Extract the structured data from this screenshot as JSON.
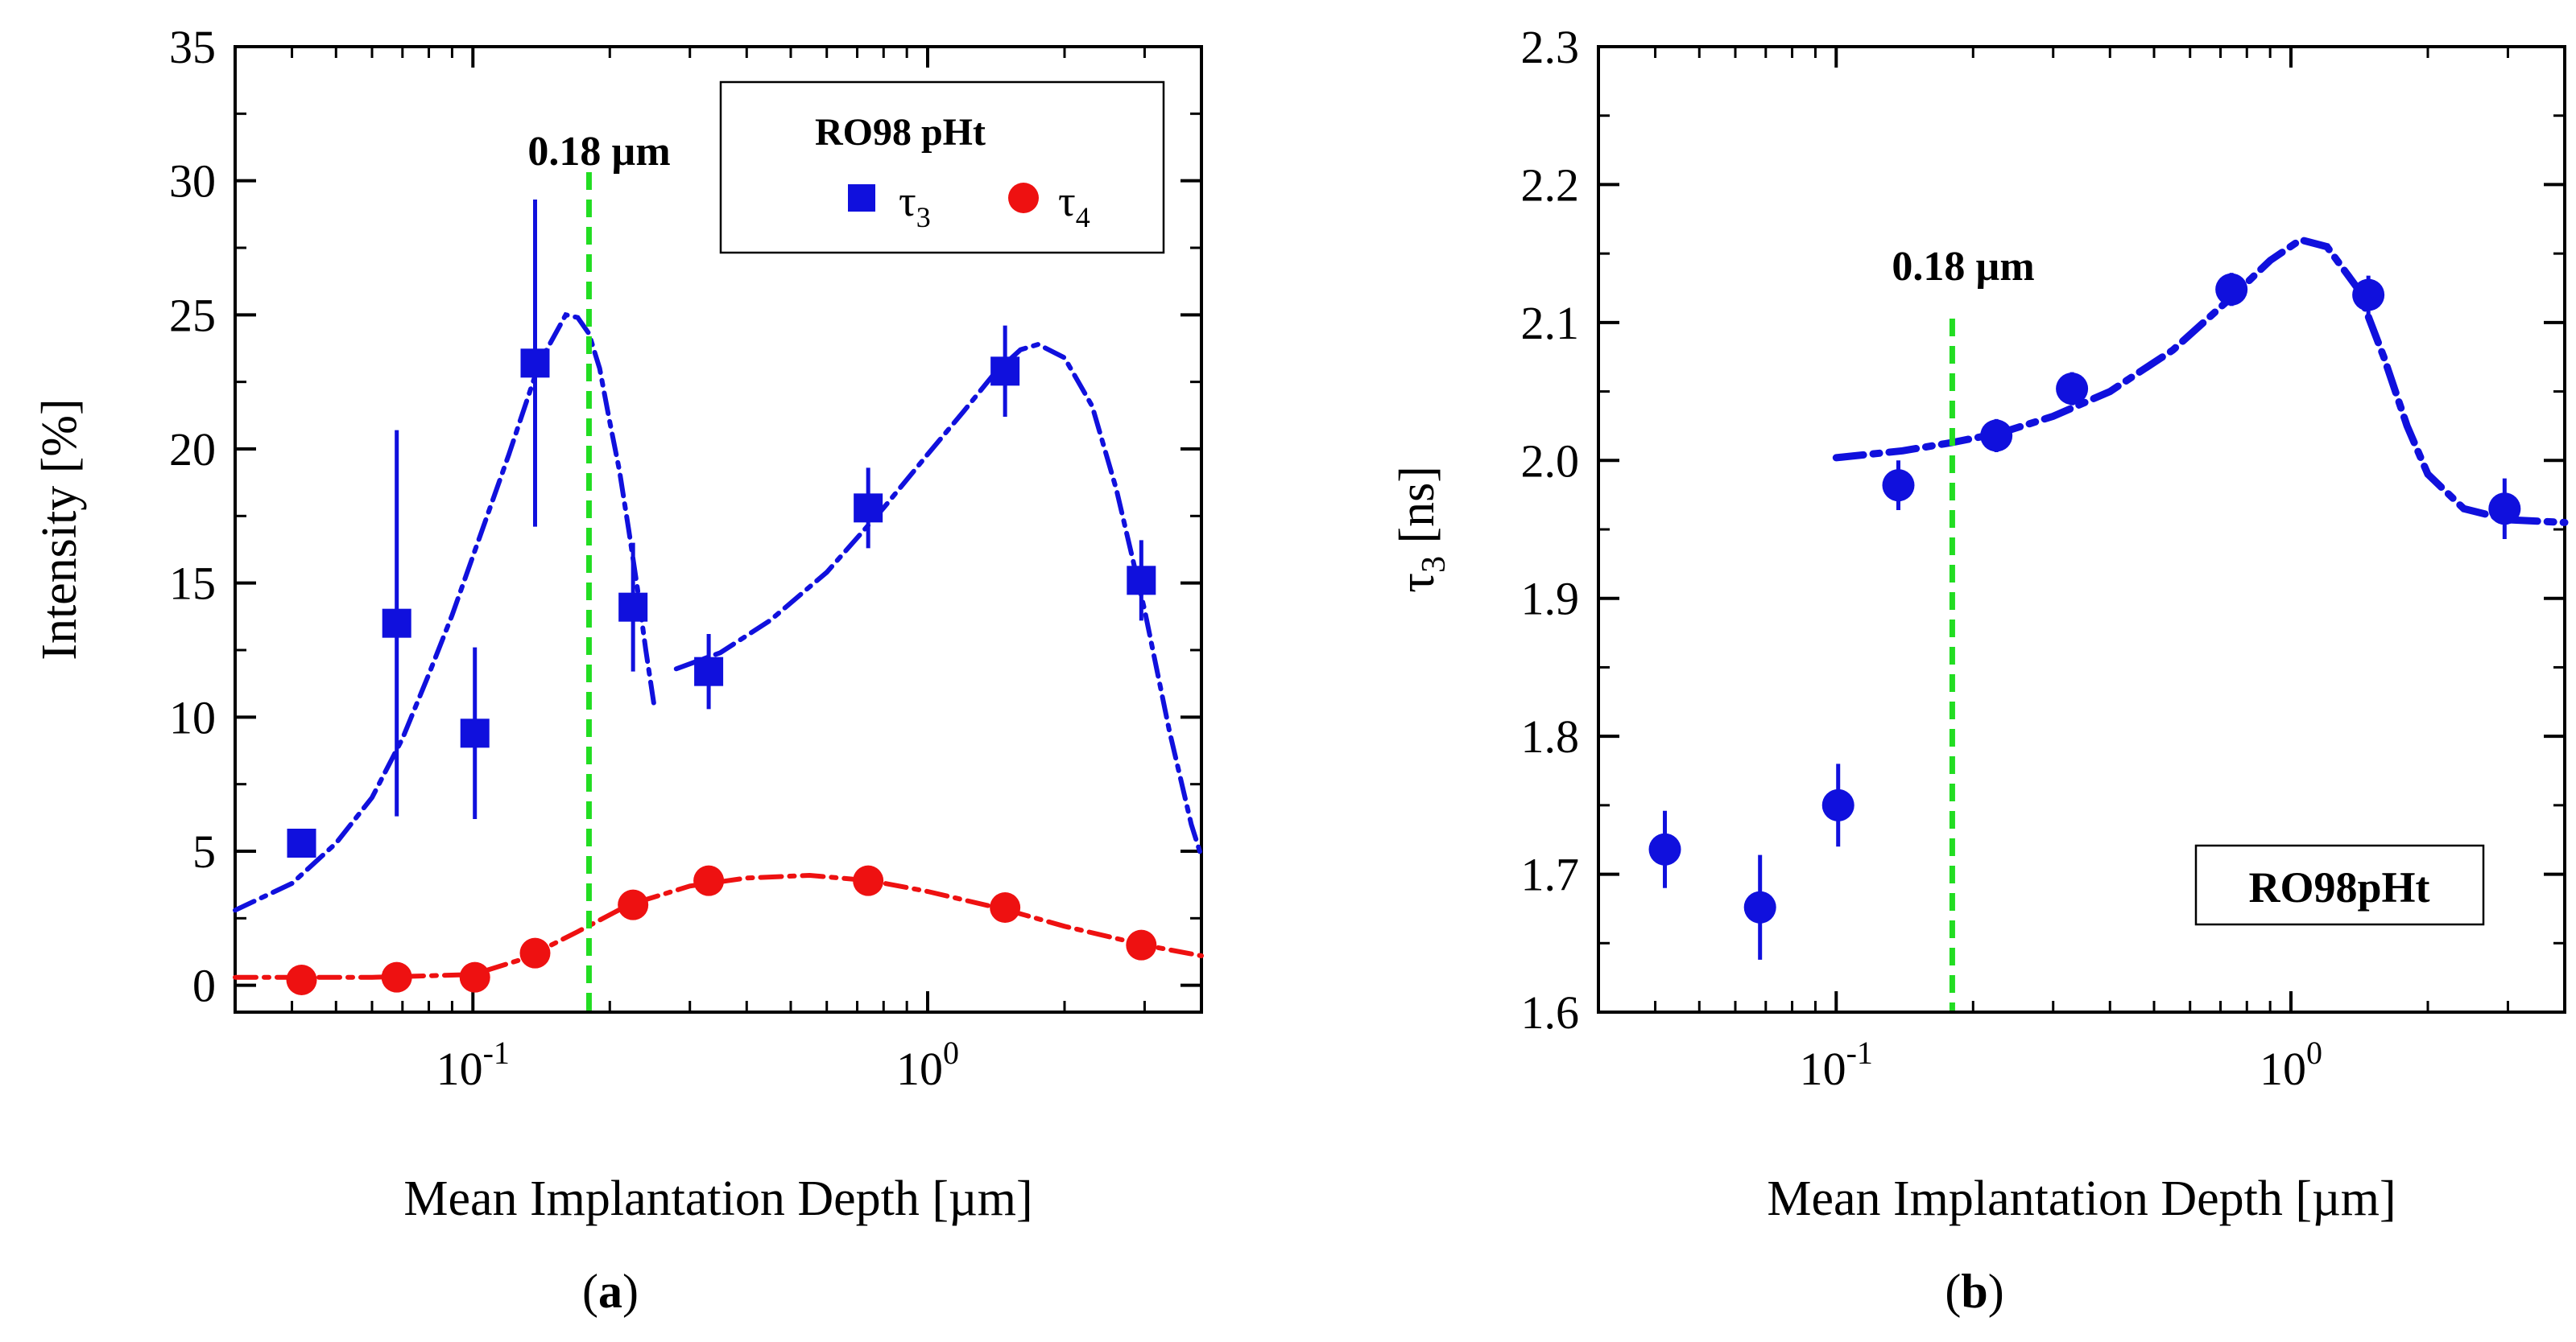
{
  "chart_data": [
    {
      "id": "a",
      "type": "scatter",
      "panel_label": "(a)",
      "panel_letter": "a",
      "xlabel": "Mean Implantation Depth [µm]",
      "ylabel": "Intensity [%]",
      "xscale": "log",
      "xlim": [
        0.03,
        4.0
      ],
      "ylim": [
        -1,
        35
      ],
      "yticks": [
        0,
        5,
        10,
        15,
        20,
        25,
        30,
        35
      ],
      "xticks_major": [
        {
          "value": 0.1,
          "base": "10",
          "exp": "-1"
        },
        {
          "value": 1.0,
          "base": "10",
          "exp": "0"
        }
      ],
      "marker_line": {
        "x": 0.18,
        "label": "0.18 µm",
        "color": "#22dd22"
      },
      "legend": {
        "title": "RO98 pHt",
        "position": "top-right"
      },
      "series": [
        {
          "name": "τ3",
          "name_main": "τ",
          "name_sub": "3",
          "marker": "square",
          "color": "#1010dd",
          "x": [
            0.042,
            0.068,
            0.101,
            0.137,
            0.225,
            0.33,
            0.74,
            1.48,
            2.95
          ],
          "y": [
            5.3,
            13.5,
            9.4,
            23.2,
            14.1,
            11.7,
            17.8,
            22.9,
            15.1
          ],
          "yerr": [
            0.3,
            7.2,
            3.2,
            6.1,
            2.4,
            1.4,
            1.5,
            1.7,
            1.5
          ],
          "fit": [
            {
              "x": [
                0.03,
                0.04,
                0.05,
                0.06,
                0.07,
                0.08,
                0.09,
                0.1,
                0.12,
                0.14,
                0.16,
                0.17,
                0.18,
                0.19,
                0.2,
                0.21,
                0.22,
                0.23,
                0.24,
                0.25
              ],
              "y": [
                2.8,
                3.8,
                5.3,
                7.0,
                9.2,
                11.6,
                13.8,
                16.0,
                19.8,
                23.2,
                25.0,
                24.9,
                24.3,
                23.0,
                21.0,
                19.2,
                17.0,
                14.8,
                12.5,
                10.5
              ]
            },
            {
              "x": [
                0.28,
                0.35,
                0.45,
                0.6,
                0.8,
                1.0,
                1.2,
                1.4,
                1.6,
                1.75,
                2.0,
                2.3,
                2.6,
                3.0,
                3.4,
                3.8,
                4.0
              ],
              "y": [
                11.8,
                12.4,
                13.6,
                15.4,
                17.8,
                19.8,
                21.4,
                22.8,
                23.7,
                23.9,
                23.4,
                21.6,
                18.5,
                14.0,
                9.5,
                6.0,
                4.8
              ]
            }
          ]
        },
        {
          "name": "τ4",
          "name_main": "τ",
          "name_sub": "4",
          "marker": "circle",
          "color": "#ee1111",
          "x": [
            0.042,
            0.068,
            0.101,
            0.137,
            0.225,
            0.33,
            0.74,
            1.48,
            2.95
          ],
          "y": [
            0.2,
            0.3,
            0.3,
            1.2,
            3.0,
            3.9,
            3.9,
            2.9,
            1.5
          ],
          "fit": [
            {
              "x": [
                0.03,
                0.06,
                0.1,
                0.13,
                0.17,
                0.22,
                0.3,
                0.4,
                0.55,
                0.75,
                1.0,
                1.5,
                2.0,
                3.0,
                4.0
              ],
              "y": [
                0.3,
                0.3,
                0.4,
                1.0,
                2.0,
                3.0,
                3.7,
                4.0,
                4.1,
                3.9,
                3.5,
                2.8,
                2.2,
                1.5,
                1.1
              ]
            }
          ]
        }
      ]
    },
    {
      "id": "b",
      "type": "scatter",
      "panel_label": "(b)",
      "panel_letter": "b",
      "xlabel": "Mean Implantation Depth [µm]",
      "ylabel": "τ3 [ns]",
      "ylabel_main": "τ",
      "ylabel_sub": "3",
      "ylabel_unit": "[ns]",
      "xscale": "log",
      "xlim": [
        0.03,
        4.0
      ],
      "ylim": [
        1.6,
        2.3
      ],
      "yticks": [
        1.6,
        1.7,
        1.8,
        1.9,
        2.0,
        2.1,
        2.2,
        2.3
      ],
      "ytick_labels": [
        "1.6",
        "1.7",
        "1.8",
        "1.9",
        "2.0",
        "2.1",
        "2.2",
        "2.3"
      ],
      "xticks_major": [
        {
          "value": 0.1,
          "base": "10",
          "exp": "-1"
        },
        {
          "value": 1.0,
          "base": "10",
          "exp": "0"
        }
      ],
      "marker_line": {
        "x": 0.18,
        "label": "0.18 µm",
        "color": "#22dd22"
      },
      "box_label": "RO98pHt",
      "series": [
        {
          "name": "τ3",
          "marker": "circle",
          "color": "#1010dd",
          "x": [
            0.042,
            0.068,
            0.101,
            0.137,
            0.225,
            0.33,
            0.74,
            1.48,
            2.95
          ],
          "y": [
            1.718,
            1.676,
            1.75,
            1.982,
            2.018,
            2.052,
            2.124,
            2.12,
            1.965
          ],
          "yerr": [
            0.028,
            0.038,
            0.03,
            0.018,
            0.012,
            0.012,
            0.012,
            0.014,
            0.022
          ],
          "fit": [
            {
              "x": [
                0.1,
                0.14,
                0.18,
                0.23,
                0.3,
                0.4,
                0.55,
                0.75,
                0.9,
                1.05,
                1.2,
                1.4,
                1.6,
                1.8,
                2.0,
                2.4,
                3.0,
                4.0
              ],
              "y": [
                2.002,
                2.007,
                2.013,
                2.02,
                2.032,
                2.05,
                2.08,
                2.12,
                2.145,
                2.16,
                2.155,
                2.125,
                2.075,
                2.025,
                1.99,
                1.965,
                1.957,
                1.955
              ]
            }
          ]
        }
      ]
    }
  ]
}
